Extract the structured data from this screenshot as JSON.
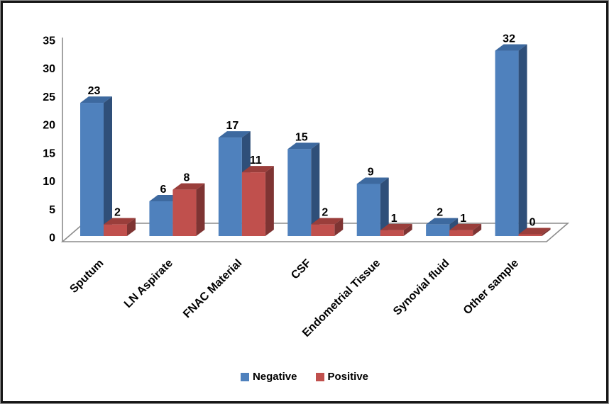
{
  "chart_data": {
    "type": "bar",
    "style": "3d-clustered-column",
    "title": "",
    "xlabel": "",
    "ylabel": "",
    "grid": false,
    "categories": [
      "Sputum",
      "LN Aspirate",
      "FNAC Material",
      "CSF",
      "Endometrial Tissue",
      "Synovial fluid",
      "Other sample"
    ],
    "series": [
      {
        "name": "Negative",
        "values": [
          23,
          6,
          17,
          15,
          9,
          2,
          32
        ],
        "color": "#4F81BD",
        "color_top": "#3D699F",
        "color_side": "#2F4F79"
      },
      {
        "name": "Positive",
        "values": [
          2,
          8,
          11,
          2,
          1,
          1,
          0
        ],
        "color": "#C0504D",
        "color_top": "#9A3E3B",
        "color_side": "#7E3433"
      }
    ],
    "y_axis": {
      "min": 0,
      "max": 35,
      "step": 5,
      "tick_labels": [
        "0",
        "5",
        "10",
        "15",
        "20",
        "25",
        "30",
        "35"
      ]
    },
    "legend": {
      "position": "bottom",
      "entries": [
        "Negative",
        "Positive"
      ]
    },
    "colors": {
      "axis_line": "#8C8C8C",
      "label_text": "#000000",
      "plot_background": "#FFFFFF",
      "frame_border": "#161616"
    }
  }
}
